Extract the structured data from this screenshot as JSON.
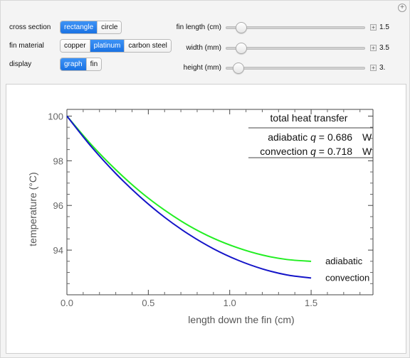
{
  "controls": {
    "cross_section": {
      "label": "cross section",
      "options": [
        "rectangle",
        "circle"
      ],
      "selected": 0
    },
    "fin_material": {
      "label": "fin material",
      "options": [
        "copper",
        "platinum",
        "carbon steel"
      ],
      "selected": 1
    },
    "display": {
      "label": "display",
      "options": [
        "graph",
        "fin"
      ],
      "selected": 0
    }
  },
  "sliders": [
    {
      "label": "fin length (cm)",
      "value": "1.5",
      "fraction": 0.07
    },
    {
      "label": "width (mm)",
      "value": "3.5",
      "fraction": 0.07
    },
    {
      "label": "height (mm)",
      "value": "3.",
      "fraction": 0.05
    }
  ],
  "chart_data": {
    "type": "line",
    "xlabel": "length down the fin (cm)",
    "ylabel": "temperature (°C)",
    "xlim": [
      0,
      1.88
    ],
    "ylim": [
      92.0,
      100.3
    ],
    "xticks": [
      0.0,
      0.5,
      1.0,
      1.5
    ],
    "xtick_labels": [
      "0.0",
      "0.5",
      "1.0",
      "1.5"
    ],
    "yticks": [
      94,
      96,
      98,
      100
    ],
    "ytick_labels": [
      "94",
      "96",
      "98",
      "100"
    ],
    "series": [
      {
        "name": "adiabatic",
        "color": "#22ee22",
        "x": [
          0,
          0.15,
          0.3,
          0.45,
          0.6,
          0.75,
          0.9,
          1.05,
          1.2,
          1.35,
          1.5
        ],
        "y": [
          100,
          98.72,
          97.6,
          96.62,
          95.79,
          95.09,
          94.53,
          94.1,
          93.78,
          93.58,
          93.5
        ]
      },
      {
        "name": "convection",
        "color": "#1414c8",
        "x": [
          0,
          0.15,
          0.3,
          0.45,
          0.6,
          0.75,
          0.9,
          1.05,
          1.2,
          1.35,
          1.5
        ],
        "y": [
          100,
          98.63,
          97.43,
          96.38,
          95.47,
          94.7,
          94.06,
          93.55,
          93.16,
          92.89,
          92.75
        ]
      }
    ],
    "heat_table": {
      "title": "total heat transfer",
      "rows": [
        {
          "label": "adiabatic",
          "q": "q",
          "eq": " =  ",
          "value": "0.686",
          "unit": "W"
        },
        {
          "label": "convection",
          "q": "q",
          "eq": " =  ",
          "value": "0.718",
          "unit": "W"
        }
      ]
    }
  }
}
